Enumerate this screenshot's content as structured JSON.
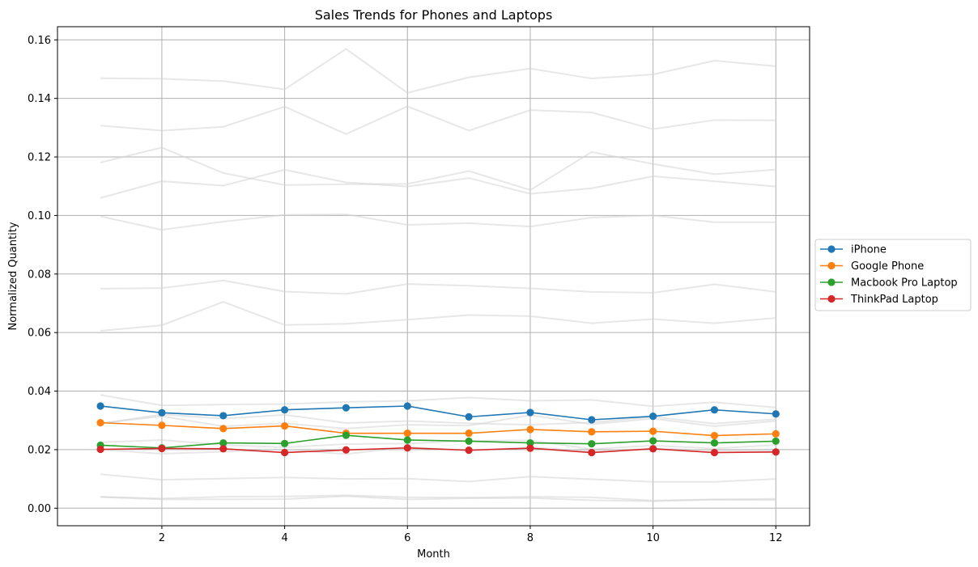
{
  "chart_data": {
    "type": "line",
    "title": "Sales Trends for Phones and Laptops",
    "xlabel": "Month",
    "ylabel": "Normalized Quantity",
    "xlim": [
      0.3,
      12.55
    ],
    "ylim": [
      -0.006,
      0.1645
    ],
    "xticks": [
      2,
      4,
      6,
      8,
      10,
      12
    ],
    "yticks": [
      "0.00",
      "0.02",
      "0.04",
      "0.06",
      "0.08",
      "0.10",
      "0.12",
      "0.14",
      "0.16"
    ],
    "grid": true,
    "legend_position": "center-right-outside",
    "x": [
      1,
      2,
      3,
      4,
      5,
      6,
      7,
      8,
      9,
      10,
      11,
      12
    ],
    "series": [
      {
        "name": "iPhone",
        "color": "#1f77b4",
        "values": [
          0.0349,
          0.0326,
          0.0316,
          0.0336,
          0.0343,
          0.0349,
          0.0312,
          0.0327,
          0.0302,
          0.0314,
          0.0336,
          0.0322
        ]
      },
      {
        "name": "Google Phone",
        "color": "#ff7f0e",
        "values": [
          0.0292,
          0.0283,
          0.0272,
          0.0281,
          0.0256,
          0.0256,
          0.0256,
          0.0269,
          0.0261,
          0.0263,
          0.0248,
          0.0254
        ]
      },
      {
        "name": "Macbook Pro Laptop",
        "color": "#2ca02c",
        "values": [
          0.0215,
          0.0206,
          0.0223,
          0.0221,
          0.0249,
          0.0233,
          0.0229,
          0.0223,
          0.022,
          0.023,
          0.0223,
          0.0229
        ]
      },
      {
        "name": "ThinkPad Laptop",
        "color": "#d62728",
        "values": [
          0.0201,
          0.0204,
          0.0203,
          0.019,
          0.0199,
          0.0206,
          0.0198,
          0.0205,
          0.019,
          0.0203,
          0.019,
          0.0192
        ]
      }
    ],
    "background_series_color": "#d3d3d3",
    "background_series": [
      [
        0.1469,
        0.1467,
        0.1459,
        0.1431,
        0.1569,
        0.1419,
        0.1472,
        0.1502,
        0.1468,
        0.1482,
        0.1529,
        0.151
      ],
      [
        0.1307,
        0.129,
        0.1303,
        0.1372,
        0.1278,
        0.1373,
        0.129,
        0.136,
        0.1352,
        0.1295,
        0.1326,
        0.1325
      ],
      [
        0.1181,
        0.1232,
        0.1145,
        0.1104,
        0.1107,
        0.1108,
        0.1152,
        0.1087,
        0.1217,
        0.1176,
        0.1141,
        0.1157
      ],
      [
        0.106,
        0.1117,
        0.1102,
        0.1156,
        0.1113,
        0.1099,
        0.1128,
        0.1074,
        0.1093,
        0.1134,
        0.1117,
        0.1099
      ],
      [
        0.0997,
        0.0951,
        0.0979,
        0.1002,
        0.1004,
        0.0968,
        0.0974,
        0.0962,
        0.0993,
        0.1,
        0.0977,
        0.0977
      ],
      [
        0.075,
        0.0752,
        0.0778,
        0.074,
        0.0732,
        0.0766,
        0.076,
        0.0751,
        0.0739,
        0.0736,
        0.0765,
        0.0739
      ],
      [
        0.0606,
        0.0625,
        0.0705,
        0.0626,
        0.063,
        0.0644,
        0.066,
        0.0656,
        0.0632,
        0.0646,
        0.0632,
        0.065
      ],
      [
        0.0387,
        0.0351,
        0.0354,
        0.0356,
        0.0363,
        0.0367,
        0.0378,
        0.0367,
        0.037,
        0.0348,
        0.0362,
        0.0344
      ],
      [
        0.0289,
        0.032,
        0.0306,
        0.0319,
        0.0291,
        0.0298,
        0.029,
        0.0285,
        0.0293,
        0.0312,
        0.0289,
        0.0304
      ],
      [
        0.029,
        0.0314,
        0.028,
        0.029,
        0.0272,
        0.0285,
        0.0282,
        0.0318,
        0.0287,
        0.0306,
        0.028,
        0.0298
      ],
      [
        0.0225,
        0.0233,
        0.0216,
        0.0208,
        0.0219,
        0.0221,
        0.023,
        0.0232,
        0.0202,
        0.0214,
        0.0204,
        0.0216
      ],
      [
        0.02,
        0.0186,
        0.0193,
        0.02,
        0.0185,
        0.0209,
        0.0197,
        0.0208,
        0.0194,
        0.0204,
        0.0197,
        0.0196
      ],
      [
        0.0116,
        0.0097,
        0.0101,
        0.0105,
        0.01,
        0.0101,
        0.0091,
        0.0108,
        0.0099,
        0.009,
        0.009,
        0.01
      ],
      [
        0.0039,
        0.0033,
        0.0039,
        0.004,
        0.0044,
        0.0037,
        0.0036,
        0.0039,
        0.0037,
        0.0026,
        0.003,
        0.0032
      ],
      [
        0.0038,
        0.003,
        0.003,
        0.0031,
        0.0041,
        0.003,
        0.0034,
        0.0035,
        0.0027,
        0.0024,
        0.0029,
        0.0028
      ]
    ]
  }
}
